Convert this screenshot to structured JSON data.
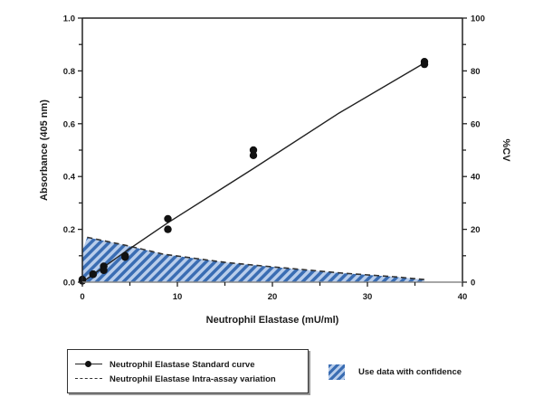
{
  "chart_data": {
    "type": "line",
    "title": "",
    "xlabel": "Neutrophil Elastase (mU/ml)",
    "ylabel": "Absorbance (405 nm)",
    "y2label": "%CV",
    "xlim": [
      0,
      40
    ],
    "ylim": [
      0,
      1.0
    ],
    "y2lim": [
      0,
      100
    ],
    "x_ticks": [
      "0",
      "10",
      "20",
      "30",
      "40"
    ],
    "y_ticks": [
      "0.0",
      "0.2",
      "0.4",
      "0.6",
      "0.8",
      "1.0"
    ],
    "y2_ticks": [
      "0",
      "20",
      "40",
      "60",
      "80",
      "100"
    ],
    "grid": false,
    "legend_position": "bottom",
    "series": [
      {
        "name": "Neutrophil Elastase Standard curve",
        "style": "solid line with filled circles",
        "axis": "left",
        "points": [
          {
            "x": 0,
            "y": 0.01
          },
          {
            "x": 0,
            "y": 0.005
          },
          {
            "x": 1.125,
            "y": 0.03
          },
          {
            "x": 1.125,
            "y": 0.03
          },
          {
            "x": 2.25,
            "y": 0.06
          },
          {
            "x": 2.25,
            "y": 0.045
          },
          {
            "x": 4.5,
            "y": 0.1
          },
          {
            "x": 4.5,
            "y": 0.095
          },
          {
            "x": 9,
            "y": 0.24
          },
          {
            "x": 9,
            "y": 0.2
          },
          {
            "x": 18,
            "y": 0.5
          },
          {
            "x": 18,
            "y": 0.48
          },
          {
            "x": 36,
            "y": 0.835
          },
          {
            "x": 36,
            "y": 0.825
          }
        ],
        "fit": [
          {
            "x": 0,
            "y": 0.0
          },
          {
            "x": 4.5,
            "y": 0.115
          },
          {
            "x": 9,
            "y": 0.225
          },
          {
            "x": 18,
            "y": 0.43
          },
          {
            "x": 27,
            "y": 0.64
          },
          {
            "x": 36,
            "y": 0.83
          }
        ]
      },
      {
        "name": "Neutrophil Elastase Intra-assay variation",
        "style": "dashed line",
        "axis": "right",
        "x": [
          0,
          0.5,
          4.5,
          8.5,
          15,
          20,
          27.5,
          33,
          36
        ],
        "values": [
          12,
          17,
          14,
          10.6,
          7.5,
          5.8,
          3.4,
          2,
          1
        ]
      }
    ],
    "shaded_region": {
      "label": "Use data with confidence",
      "description": "hatched area under %CV curve from x=0 to x=36"
    }
  },
  "legend": {
    "items": [
      {
        "label": "Neutrophil Elastase Standard curve",
        "symbol": "solid-line-circle"
      },
      {
        "label": "Neutrophil Elastase Intra-assay variation",
        "symbol": "dashed-line"
      }
    ],
    "confidence_label": "Use data with confidence"
  },
  "colors": {
    "hatch_dark": "#3a6db3",
    "hatch_light": "#b8cdeb",
    "line": "#222222",
    "marker": "#111111"
  }
}
